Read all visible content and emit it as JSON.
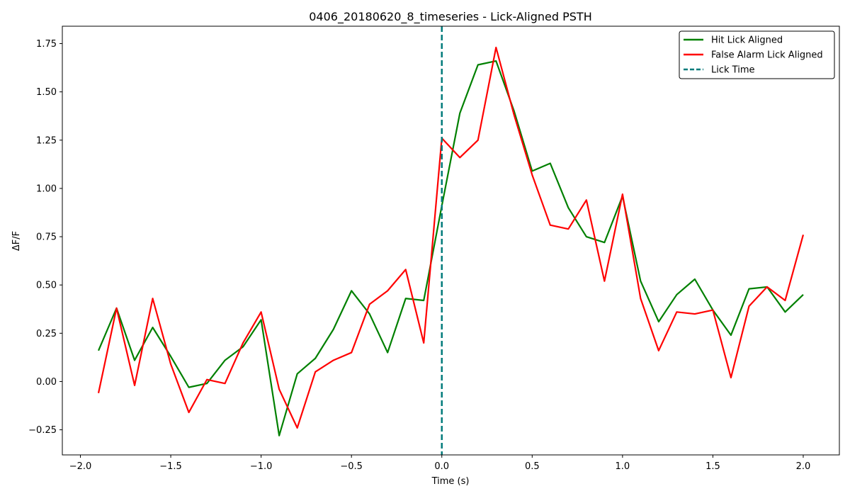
{
  "chart_data": {
    "type": "line",
    "title": "0406_20180620_8_timeseries - Lick-Aligned PSTH",
    "xlabel": "Time (s)",
    "ylabel": "ΔF/F",
    "xlim": [
      -2.1,
      2.2
    ],
    "ylim": [
      -0.38,
      1.84
    ],
    "xticks": [
      -2.0,
      -1.5,
      -1.0,
      -0.5,
      0.0,
      0.5,
      1.0,
      1.5,
      2.0
    ],
    "xtick_labels": [
      "−2.0",
      "−1.5",
      "−1.0",
      "−0.5",
      "0.0",
      "0.5",
      "1.0",
      "1.5",
      "2.0"
    ],
    "yticks": [
      -0.25,
      0.0,
      0.25,
      0.5,
      0.75,
      1.0,
      1.25,
      1.5,
      1.75
    ],
    "ytick_labels": [
      "−0.25",
      "0.00",
      "0.25",
      "0.50",
      "0.75",
      "1.00",
      "1.25",
      "1.50",
      "1.75"
    ],
    "grid": false,
    "legend_position": "top-right",
    "x": [
      -1.9,
      -1.8,
      -1.7,
      -1.6,
      -1.5,
      -1.4,
      -1.3,
      -1.2,
      -1.1,
      -1.0,
      -0.9,
      -0.8,
      -0.7,
      -0.6,
      -0.5,
      -0.4,
      -0.3,
      -0.2,
      -0.1,
      0.0,
      0.1,
      0.2,
      0.3,
      0.4,
      0.5,
      0.6,
      0.7,
      0.8,
      0.9,
      1.0,
      1.1,
      1.2,
      1.3,
      1.4,
      1.5,
      1.6,
      1.7,
      1.8,
      1.9,
      2.0
    ],
    "series": [
      {
        "name": "Hit Lick Aligned",
        "color": "#008000",
        "style": "solid",
        "values": [
          0.16,
          0.38,
          0.11,
          0.28,
          0.13,
          -0.03,
          -0.01,
          0.11,
          0.18,
          0.32,
          -0.28,
          0.04,
          0.12,
          0.27,
          0.47,
          0.35,
          0.15,
          0.43,
          0.42,
          0.91,
          1.39,
          1.64,
          1.66,
          1.4,
          1.09,
          1.13,
          0.9,
          0.75,
          0.72,
          0.96,
          0.52,
          0.31,
          0.45,
          0.53,
          0.37,
          0.24,
          0.48,
          0.49,
          0.36,
          0.45
        ]
      },
      {
        "name": "False Alarm Lick Aligned",
        "color": "#ff0000",
        "style": "solid",
        "values": [
          -0.06,
          0.38,
          -0.02,
          0.43,
          0.09,
          -0.16,
          0.01,
          -0.01,
          0.2,
          0.36,
          -0.04,
          -0.24,
          0.05,
          0.11,
          0.15,
          0.4,
          0.47,
          0.58,
          0.2,
          1.26,
          1.16,
          1.25,
          1.73,
          1.38,
          1.07,
          0.81,
          0.79,
          0.94,
          0.52,
          0.97,
          0.43,
          0.16,
          0.36,
          0.35,
          0.37,
          0.02,
          0.39,
          0.49,
          0.42,
          0.76
        ]
      }
    ],
    "vline": {
      "name": "Lick Time",
      "x": 0.0,
      "color": "#007b7b",
      "style": "dashed"
    }
  }
}
